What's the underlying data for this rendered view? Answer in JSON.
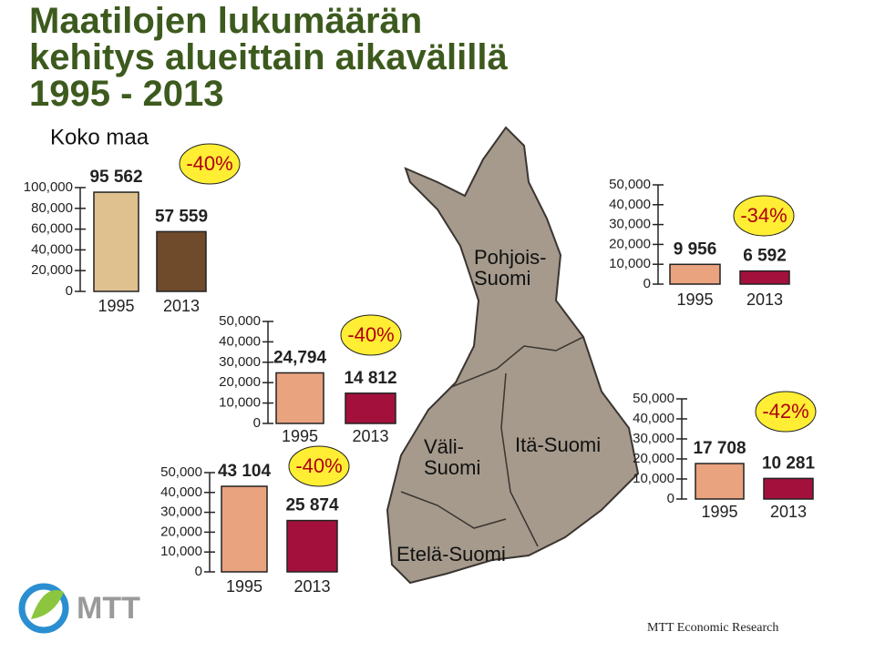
{
  "title": [
    "Maatilojen lukumäärän",
    "kehitys alueittain aikavälillä",
    "1995 - 2013"
  ],
  "chart_data": [
    {
      "type": "bar",
      "title": "Koko maa",
      "categories": [
        "1995",
        "2013"
      ],
      "values": [
        95562,
        57559
      ],
      "value_labels": [
        "95 562",
        "57 559"
      ],
      "change": "-40%",
      "colors": [
        "#dfc18f",
        "#6f4b2c"
      ],
      "ylim": [
        0,
        100000
      ],
      "yticks": [
        0,
        {
          "value": 20000,
          "label": "20,000"
        },
        {
          "value": 40000,
          "label": "40,000"
        },
        {
          "value": 60000,
          "label": "60,000"
        },
        {
          "value": 80000,
          "label": "80,000"
        },
        {
          "value": 100000,
          "label": "100,000"
        }
      ]
    },
    {
      "type": "bar",
      "categories": [
        "1995",
        "2013"
      ],
      "values": [
        24794,
        14812
      ],
      "value_labels": [
        "24,794",
        "14 812"
      ],
      "change": "-40%",
      "colors": [
        "#e9a37f",
        "#a3103c"
      ],
      "ylim": [
        0,
        50000
      ],
      "yticks": [
        0,
        {
          "value": 10000,
          "label": "10,000"
        },
        {
          "value": 20000,
          "label": "20,000"
        },
        {
          "value": 30000,
          "label": "30,000"
        },
        {
          "value": 40000,
          "label": "40,000"
        },
        {
          "value": 50000,
          "label": "50,000"
        }
      ]
    },
    {
      "type": "bar",
      "categories": [
        "1995",
        "2013"
      ],
      "values": [
        43104,
        25874
      ],
      "value_labels": [
        "43 104",
        "25 874"
      ],
      "change": "-40%",
      "colors": [
        "#e9a37f",
        "#a3103c"
      ],
      "ylim": [
        0,
        50000
      ],
      "yticks": [
        0,
        {
          "value": 10000,
          "label": "10,000"
        },
        {
          "value": 20000,
          "label": "20,000"
        },
        {
          "value": 30000,
          "label": "30,000"
        },
        {
          "value": 40000,
          "label": "40,000"
        },
        {
          "value": 50000,
          "label": "50,000"
        }
      ]
    },
    {
      "type": "bar",
      "categories": [
        "1995",
        "2013"
      ],
      "values": [
        9956,
        6592
      ],
      "value_labels": [
        "9 956",
        "6 592"
      ],
      "change": "-34%",
      "colors": [
        "#e9a37f",
        "#a3103c"
      ],
      "ylim": [
        0,
        50000
      ],
      "yticks": [
        0,
        {
          "value": 10000,
          "label": "10,000"
        },
        {
          "value": 20000,
          "label": "20,000"
        },
        {
          "value": 30000,
          "label": "30,000"
        },
        {
          "value": 40000,
          "label": "40,000"
        },
        {
          "value": 50000,
          "label": "50,000"
        }
      ]
    },
    {
      "type": "bar",
      "categories": [
        "1995",
        "2013"
      ],
      "values": [
        17708,
        10281
      ],
      "value_labels": [
        "17 708",
        "10 281"
      ],
      "change": "-42%",
      "colors": [
        "#e9a37f",
        "#a3103c"
      ],
      "ylim": [
        0,
        50000
      ],
      "yticks": [
        0,
        {
          "value": 10000,
          "label": "10,000"
        },
        {
          "value": 20000,
          "label": "20,000"
        },
        {
          "value": 30000,
          "label": "30,000"
        },
        {
          "value": 40000,
          "label": "40,000"
        },
        {
          "value": 50000,
          "label": "50,000"
        }
      ]
    }
  ],
  "map_labels": [
    [
      "Pohjois-",
      "Suomi"
    ],
    [
      "Väli-",
      "Suomi"
    ],
    [
      "Itä-Suomi"
    ],
    [
      "Etelä-Suomi"
    ]
  ],
  "logo": "MTT",
  "footer": "MTT Economic Research"
}
